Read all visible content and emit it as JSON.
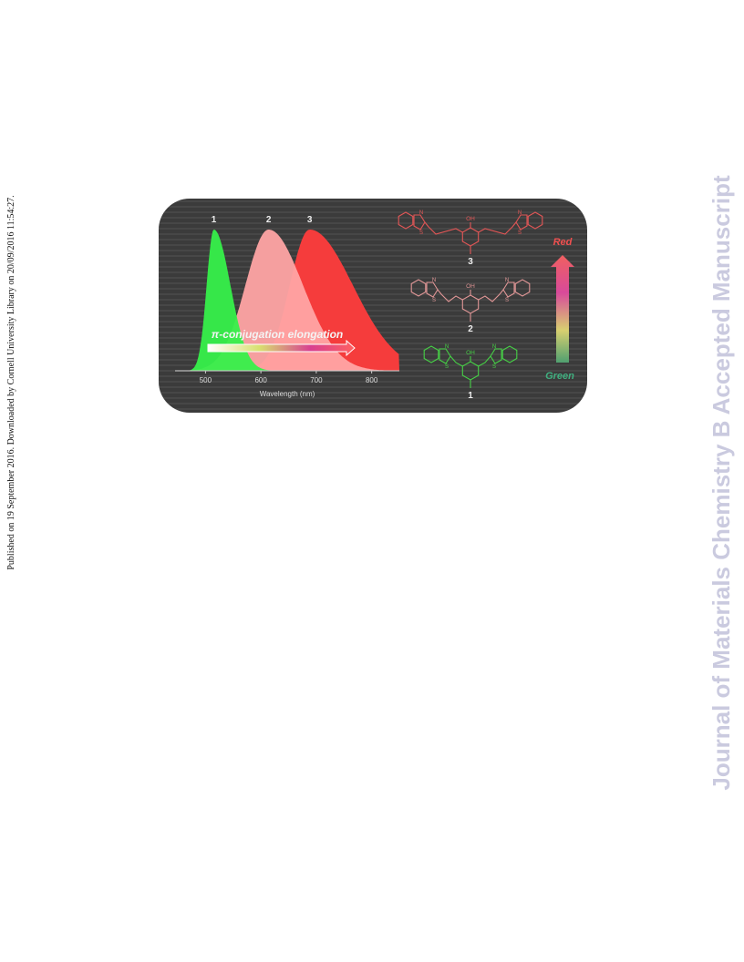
{
  "sidebar": {
    "left_note": "Published on 19 September 2016. Downloaded by Cornell University Library on 20/09/2016 11:54:27.",
    "journal": "Journal of Materials Chemistry B Accepted Manuscript"
  },
  "figure": {
    "spectrum": {
      "xlim": [
        445,
        850
      ],
      "xticks": [
        500,
        600,
        700,
        800
      ],
      "xlabel": "Wavelength (nm)",
      "series": [
        {
          "name": "1",
          "color": "#36f04a",
          "peak": 515,
          "width_left": 13,
          "width_right": 30
        },
        {
          "name": "2",
          "color": "#ffa4a4",
          "peak": 614,
          "width_left": 42,
          "width_right": 62
        },
        {
          "name": "3",
          "color": "#ff3c3c",
          "peak": 688,
          "width_left": 36,
          "width_right": 78
        }
      ],
      "arrow_label": "π-conjugation elongation"
    },
    "scale": {
      "top": "Red",
      "bottom": "Green"
    },
    "molecules": [
      {
        "label": "3",
        "color": "#e25656"
      },
      {
        "label": "2",
        "color": "#e09696"
      },
      {
        "label": "1",
        "color": "#46d046"
      }
    ],
    "atoms": {
      "hydroxyl": "OH",
      "nitrogen": "N",
      "sulfur": "S"
    }
  }
}
